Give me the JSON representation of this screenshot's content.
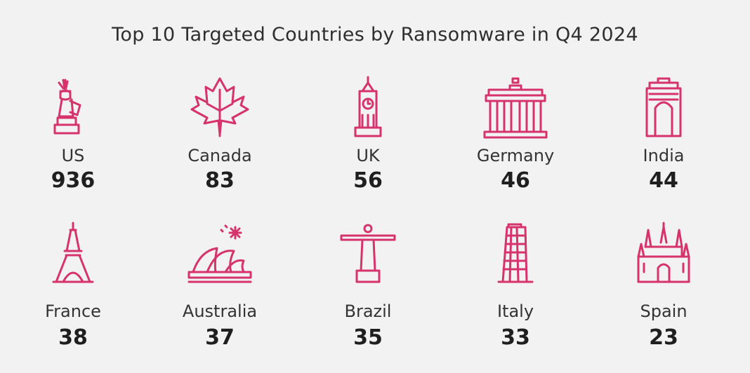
{
  "chart_data": {
    "type": "table",
    "title": "Top 10 Targeted Countries by Ransomware in Q4 2024",
    "accent_color": "#d6336c",
    "items": [
      {
        "country": "US",
        "value": 936,
        "icon": "statue-of-liberty-icon"
      },
      {
        "country": "Canada",
        "value": 83,
        "icon": "maple-leaf-icon"
      },
      {
        "country": "UK",
        "value": 56,
        "icon": "big-ben-icon"
      },
      {
        "country": "Germany",
        "value": 46,
        "icon": "brandenburg-gate-icon"
      },
      {
        "country": "India",
        "value": 44,
        "icon": "india-gate-icon"
      },
      {
        "country": "France",
        "value": 38,
        "icon": "eiffel-tower-icon"
      },
      {
        "country": "Australia",
        "value": 37,
        "icon": "sydney-opera-house-icon"
      },
      {
        "country": "Brazil",
        "value": 35,
        "icon": "christ-the-redeemer-icon"
      },
      {
        "country": "Italy",
        "value": 33,
        "icon": "leaning-tower-of-pisa-icon"
      },
      {
        "country": "Spain",
        "value": 23,
        "icon": "sagrada-familia-icon"
      }
    ]
  }
}
